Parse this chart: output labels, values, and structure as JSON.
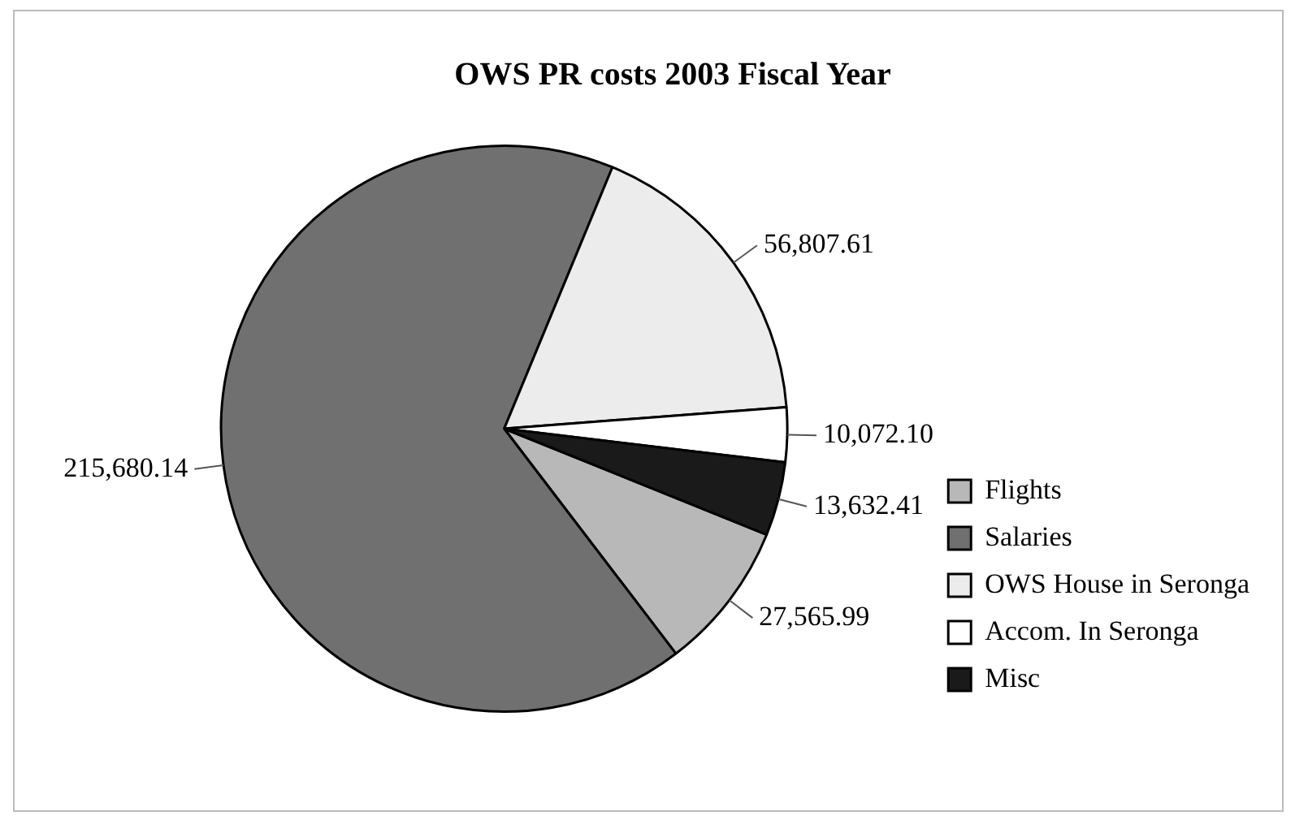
{
  "chart_data": {
    "type": "pie",
    "title": "OWS PR costs 2003 Fiscal Year",
    "categories": [
      "Flights",
      "Salaries",
      "OWS House in Seronga",
      "Accom. In Seronga",
      "Misc"
    ],
    "values": [
      27565.99,
      215680.14,
      56807.61,
      10072.1,
      13632.41
    ],
    "value_labels": [
      "27,565.99",
      "215,680.14",
      "56,807.61",
      "10,072.10",
      "13,632.41"
    ],
    "colors": [
      "#b8b8b8",
      "#707070",
      "#ececec",
      "#ffffff",
      "#1a1a1a"
    ],
    "legend": "right"
  }
}
